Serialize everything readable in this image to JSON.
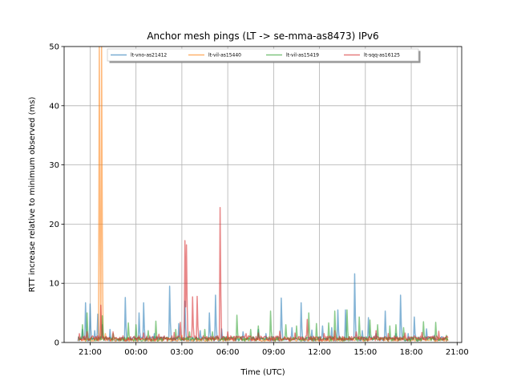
{
  "chart_data": {
    "type": "line",
    "title": "Anchor mesh pings (LT -> se-mma-as8473) IPv6",
    "xlabel": "Time (UTC)",
    "ylabel": "RTT increase relative to minimum observed (ms)",
    "x_unit": "hours",
    "xlim": [
      19.3,
      45.3
    ],
    "ylim": [
      0,
      50
    ],
    "x_ticks": [
      {
        "value": 21,
        "label": "21:00"
      },
      {
        "value": 24,
        "label": "00:00"
      },
      {
        "value": 27,
        "label": "03:00"
      },
      {
        "value": 30,
        "label": "06:00"
      },
      {
        "value": 33,
        "label": "09:00"
      },
      {
        "value": 36,
        "label": "12:00"
      },
      {
        "value": 39,
        "label": "15:00"
      },
      {
        "value": 42,
        "label": "18:00"
      },
      {
        "value": 45,
        "label": "21:00"
      }
    ],
    "y_ticks": [
      {
        "value": 0,
        "label": "0"
      },
      {
        "value": 10,
        "label": "10"
      },
      {
        "value": 20,
        "label": "20"
      },
      {
        "value": 30,
        "label": "30"
      },
      {
        "value": 40,
        "label": "40"
      },
      {
        "value": 50,
        "label": "50"
      }
    ],
    "grid": true,
    "legend_position": "top",
    "series": [
      {
        "name": "lt-vno-as21412",
        "color": "#1f77b4",
        "baseline": 0.6,
        "spikes": [
          [
            20.5,
            2.2
          ],
          [
            20.7,
            6.7
          ],
          [
            21.0,
            6.5
          ],
          [
            21.3,
            2.0
          ],
          [
            21.5,
            4.8
          ],
          [
            21.8,
            3.0
          ],
          [
            22.3,
            2.2
          ],
          [
            23.3,
            7.6
          ],
          [
            24.2,
            5.0
          ],
          [
            24.5,
            6.7
          ],
          [
            25.2,
            1.5
          ],
          [
            26.2,
            9.5
          ],
          [
            26.8,
            3.2
          ],
          [
            27.2,
            7.0
          ],
          [
            28.2,
            2.0
          ],
          [
            28.8,
            5.0
          ],
          [
            29.2,
            8.0
          ],
          [
            29.6,
            2.3
          ],
          [
            31.0,
            1.8
          ],
          [
            32.0,
            2.2
          ],
          [
            32.5,
            1.5
          ],
          [
            33.5,
            7.5
          ],
          [
            34.2,
            2.5
          ],
          [
            34.8,
            6.7
          ],
          [
            35.5,
            2.1
          ],
          [
            36.2,
            2.8
          ],
          [
            36.8,
            2.5
          ],
          [
            37.2,
            5.5
          ],
          [
            37.7,
            5.5
          ],
          [
            38.3,
            11.6
          ],
          [
            38.8,
            2.0
          ],
          [
            39.2,
            4.2
          ],
          [
            39.7,
            1.5
          ],
          [
            40.3,
            5.3
          ],
          [
            41.0,
            1.5
          ],
          [
            41.3,
            8.0
          ],
          [
            41.8,
            1.5
          ],
          [
            42.2,
            4.3
          ],
          [
            43.0,
            2.3
          ],
          [
            43.5,
            1.2
          ],
          [
            44.0,
            1.0
          ]
        ]
      },
      {
        "name": "lt-vil-as15440",
        "color": "#ff7f0e",
        "baseline": 0.5,
        "spikes": [
          [
            21.6,
            50
          ],
          [
            21.75,
            50
          ],
          [
            22.0,
            1.5
          ],
          [
            27.0,
            1.2
          ],
          [
            30.0,
            1.0
          ],
          [
            37.0,
            1.0
          ]
        ]
      },
      {
        "name": "lt-vil-as15419",
        "color": "#2ca02c",
        "baseline": 0.6,
        "spikes": [
          [
            20.5,
            3.0
          ],
          [
            20.8,
            5.0
          ],
          [
            21.8,
            4.5
          ],
          [
            22.5,
            1.5
          ],
          [
            23.5,
            3.3
          ],
          [
            24.0,
            3.0
          ],
          [
            24.8,
            2.0
          ],
          [
            25.3,
            3.6
          ],
          [
            26.6,
            2.2
          ],
          [
            27.5,
            1.8
          ],
          [
            28.5,
            2.2
          ],
          [
            29.0,
            1.8
          ],
          [
            30.6,
            4.6
          ],
          [
            31.5,
            2.2
          ],
          [
            32.0,
            2.8
          ],
          [
            32.8,
            5.3
          ],
          [
            33.8,
            3.0
          ],
          [
            34.5,
            2.8
          ],
          [
            35.3,
            5.0
          ],
          [
            35.8,
            3.2
          ],
          [
            36.6,
            3.3
          ],
          [
            37.0,
            5.3
          ],
          [
            37.8,
            5.5
          ],
          [
            38.6,
            4.3
          ],
          [
            39.3,
            3.8
          ],
          [
            39.8,
            3.0
          ],
          [
            40.6,
            2.8
          ],
          [
            41.0,
            3.0
          ],
          [
            41.5,
            2.5
          ],
          [
            42.8,
            3.5
          ],
          [
            43.6,
            3.4
          ],
          [
            44.3,
            1.2
          ]
        ]
      },
      {
        "name": "lt-sqq-as16125",
        "color": "#d62728",
        "baseline": 0.7,
        "spikes": [
          [
            20.3,
            1.5
          ],
          [
            20.8,
            1.8
          ],
          [
            21.7,
            6.3
          ],
          [
            22.5,
            1.8
          ],
          [
            24.5,
            1.6
          ],
          [
            25.5,
            1.4
          ],
          [
            26.5,
            1.7
          ],
          [
            26.9,
            3.4
          ],
          [
            27.2,
            17.2
          ],
          [
            27.3,
            16.5
          ],
          [
            27.7,
            7.7
          ],
          [
            28.0,
            7.8
          ],
          [
            29.5,
            22.8
          ],
          [
            30.0,
            1.8
          ],
          [
            31.2,
            1.5
          ],
          [
            32.0,
            1.6
          ],
          [
            33.4,
            1.9
          ],
          [
            34.4,
            1.6
          ],
          [
            35.2,
            3.9
          ],
          [
            36.3,
            1.5
          ],
          [
            37.0,
            2.0
          ],
          [
            38.4,
            1.8
          ],
          [
            39.7,
            2.0
          ],
          [
            40.5,
            1.5
          ],
          [
            41.6,
            1.6
          ],
          [
            42.7,
            1.7
          ],
          [
            43.8,
            1.9
          ],
          [
            44.5,
            1.2
          ]
        ]
      }
    ]
  }
}
